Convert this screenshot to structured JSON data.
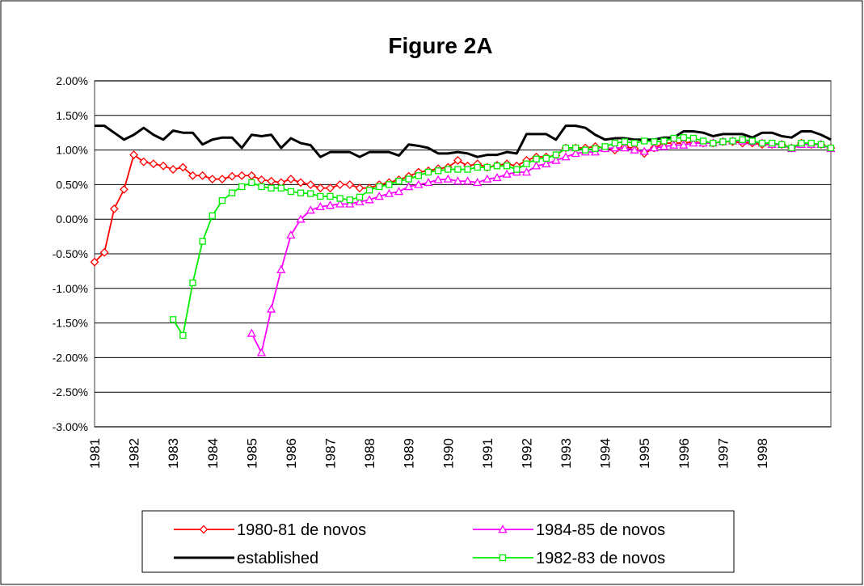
{
  "chart_data": {
    "type": "line",
    "title": "Figure 2A",
    "categories": [
      "1981",
      null,
      null,
      null,
      "1982",
      null,
      null,
      null,
      "1983",
      null,
      null,
      null,
      "1984",
      null,
      null,
      null,
      "1985",
      null,
      null,
      null,
      "1986",
      null,
      null,
      null,
      "1987",
      null,
      null,
      null,
      "1988",
      null,
      null,
      null,
      "1989",
      null,
      null,
      null,
      "1990",
      null,
      null,
      null,
      "1991",
      null,
      null,
      null,
      "1992",
      null,
      null,
      null,
      "1993",
      null,
      null,
      null,
      "1994",
      null,
      null,
      null,
      "1995",
      null,
      null,
      null,
      "1996",
      null,
      null,
      null,
      "1997",
      null,
      null,
      null,
      "1998",
      null,
      null,
      null,
      null,
      null,
      null,
      null
    ],
    "ylim": [
      -3,
      2
    ],
    "yticks": [
      {
        "value": 2,
        "label": "2.00%"
      },
      {
        "value": 1.5,
        "label": "1.50%"
      },
      {
        "value": 1,
        "label": "1.00%"
      },
      {
        "value": 0.5,
        "label": "0.50%"
      },
      {
        "value": 0,
        "label": "0.00%"
      },
      {
        "value": -0.5,
        "label": "-0.50%"
      },
      {
        "value": -1,
        "label": "-1.00%"
      },
      {
        "value": -1.5,
        "label": "-1.50%"
      },
      {
        "value": -2,
        "label": "-2.00%"
      },
      {
        "value": -2.5,
        "label": "-2.50%"
      },
      {
        "value": -3,
        "label": "-3.00%"
      }
    ],
    "grid": true,
    "series": [
      {
        "name": "1980-81 de novos",
        "color": "#ff0000",
        "marker": "diamond",
        "values": [
          -0.62,
          -0.48,
          0.15,
          0.43,
          0.93,
          0.83,
          0.8,
          0.77,
          0.72,
          0.75,
          0.63,
          0.63,
          0.58,
          0.58,
          0.62,
          0.63,
          0.63,
          0.57,
          0.55,
          0.53,
          0.58,
          0.53,
          0.5,
          0.45,
          0.45,
          0.5,
          0.5,
          0.45,
          0.45,
          0.5,
          0.53,
          0.57,
          0.62,
          0.68,
          0.7,
          0.73,
          0.75,
          0.85,
          0.77,
          0.8,
          0.75,
          0.78,
          0.8,
          0.77,
          0.85,
          0.9,
          0.9,
          0.92,
          1.03,
          1.03,
          1.03,
          1.05,
          1.03,
          1.0,
          1.05,
          1.02,
          0.95,
          1.03,
          1.1,
          1.1,
          1.1,
          1.12,
          1.1,
          1.1,
          1.12,
          1.12,
          1.1,
          1.1,
          1.08,
          1.08,
          1.08,
          1.03,
          1.1,
          1.08,
          1.08,
          1.03
        ]
      },
      {
        "name": "1984-85 de novos",
        "color": "#ff00ff",
        "marker": "triangle",
        "values": [
          null,
          null,
          null,
          null,
          null,
          null,
          null,
          null,
          null,
          null,
          null,
          null,
          null,
          null,
          null,
          null,
          -1.65,
          -1.93,
          -1.3,
          -0.73,
          -0.23,
          0.0,
          0.13,
          0.18,
          0.2,
          0.22,
          0.22,
          0.25,
          0.28,
          0.33,
          0.37,
          0.4,
          0.47,
          0.5,
          0.53,
          0.57,
          0.58,
          0.55,
          0.55,
          0.53,
          0.58,
          0.6,
          0.65,
          0.68,
          0.68,
          0.77,
          0.8,
          0.85,
          0.9,
          0.95,
          0.97,
          0.97,
          1.02,
          1.03,
          1.03,
          1.0,
          0.98,
          1.03,
          1.05,
          1.07,
          1.07,
          1.1,
          1.1,
          1.1,
          1.12,
          1.13,
          1.13,
          1.12,
          1.1,
          1.08,
          1.08,
          1.02,
          1.08,
          1.08,
          1.08,
          1.02
        ]
      },
      {
        "name": "established",
        "color": "#000000",
        "marker": "none",
        "values": [
          1.35,
          1.35,
          1.25,
          1.15,
          1.22,
          1.32,
          1.22,
          1.15,
          1.28,
          1.25,
          1.25,
          1.08,
          1.15,
          1.18,
          1.18,
          1.03,
          1.22,
          1.2,
          1.22,
          1.03,
          1.17,
          1.1,
          1.07,
          0.9,
          0.97,
          0.97,
          0.97,
          0.9,
          0.97,
          0.97,
          0.97,
          0.92,
          1.08,
          1.06,
          1.03,
          0.95,
          0.95,
          0.97,
          0.95,
          0.9,
          0.93,
          0.93,
          0.97,
          0.95,
          1.23,
          1.23,
          1.23,
          1.15,
          1.35,
          1.35,
          1.32,
          1.22,
          1.15,
          1.17,
          1.17,
          1.15,
          1.15,
          1.15,
          1.18,
          1.18,
          1.27,
          1.27,
          1.25,
          1.2,
          1.23,
          1.23,
          1.23,
          1.18,
          1.25,
          1.25,
          1.2,
          1.18,
          1.27,
          1.27,
          1.22,
          1.15
        ]
      },
      {
        "name": "1982-83 de novos",
        "color": "#00ee00",
        "marker": "square",
        "values": [
          null,
          null,
          null,
          null,
          null,
          null,
          null,
          null,
          -1.45,
          -1.68,
          -0.92,
          -0.32,
          0.05,
          0.27,
          0.38,
          0.47,
          0.53,
          0.47,
          0.45,
          0.45,
          0.4,
          0.38,
          0.37,
          0.33,
          0.33,
          0.3,
          0.28,
          0.32,
          0.42,
          0.47,
          0.5,
          0.55,
          0.58,
          0.63,
          0.68,
          0.7,
          0.72,
          0.72,
          0.72,
          0.75,
          0.75,
          0.77,
          0.77,
          0.72,
          0.8,
          0.87,
          0.88,
          0.93,
          1.03,
          1.03,
          1.0,
          1.02,
          1.05,
          1.1,
          1.12,
          1.1,
          1.13,
          1.12,
          1.13,
          1.17,
          1.18,
          1.17,
          1.13,
          1.1,
          1.12,
          1.13,
          1.15,
          1.13,
          1.1,
          1.1,
          1.08,
          1.03,
          1.1,
          1.1,
          1.08,
          1.03
        ]
      }
    ]
  }
}
